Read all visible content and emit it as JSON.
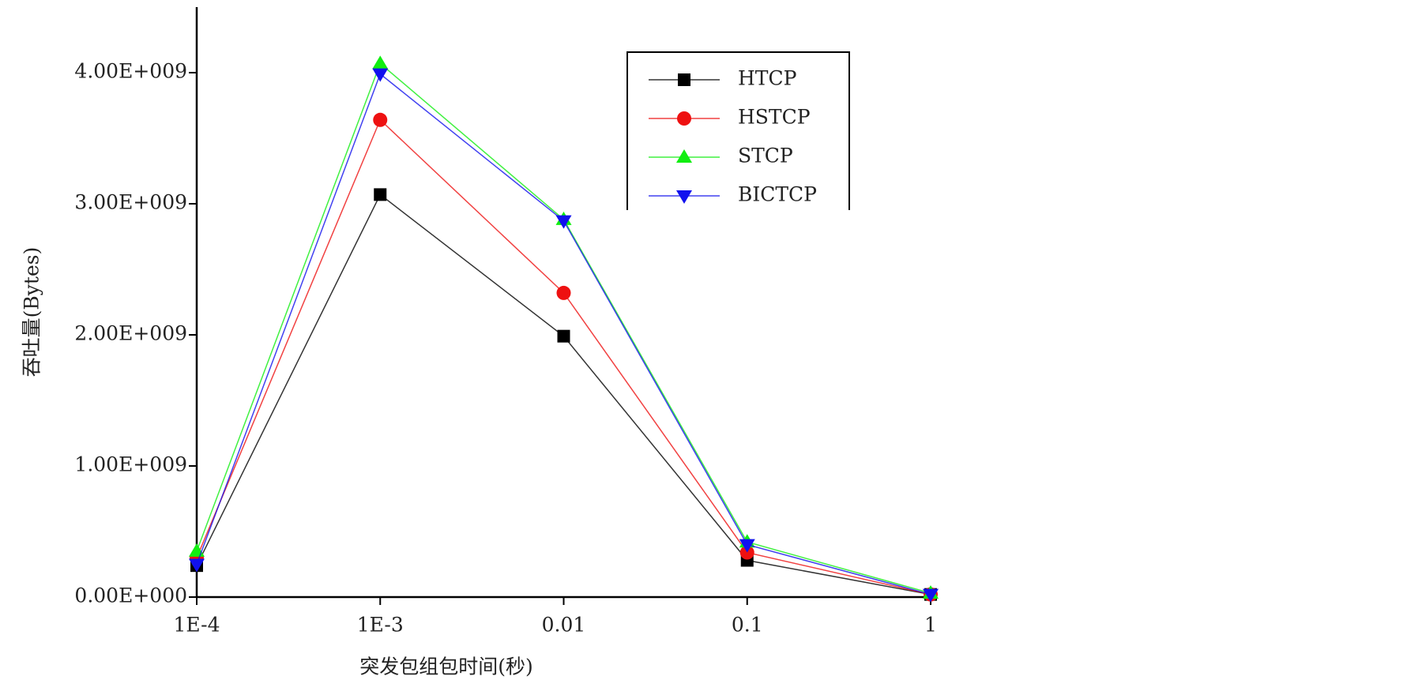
{
  "chart_data": {
    "type": "line",
    "x_label": "突发包组包时间(秒)",
    "y_label": "吞吐量(Bytes)",
    "x": [
      0.0001,
      0.001,
      0.01,
      0.1,
      1
    ],
    "xlim": [
      0.0001,
      1
    ],
    "log_x": true,
    "xticks": [
      {
        "value": 0.0001,
        "label": "1E-4"
      },
      {
        "value": 0.001,
        "label": "1E-3"
      },
      0.01,
      0.1,
      1
    ],
    "ylim": [
      0,
      4500000000
    ],
    "yticks": [
      {
        "value": 0,
        "label": "0.00E+000"
      },
      {
        "value": 1000000000,
        "label": "1.00E+009"
      },
      {
        "value": 2000000000,
        "label": "2.00E+009"
      },
      {
        "value": 3000000000,
        "label": "3.00E+009"
      },
      {
        "value": 4000000000,
        "label": "4.00E+009"
      }
    ],
    "legend": "upper right",
    "series": [
      {
        "name": "HTCP",
        "color": "#000000",
        "marker": "square",
        "values": [
          240000000,
          3070000000,
          1990000000,
          280000000,
          20000000
        ]
      },
      {
        "name": "HSTCP",
        "color": "#ee1111",
        "marker": "circle",
        "values": [
          300000000,
          3640000000,
          2320000000,
          340000000,
          20000000
        ]
      },
      {
        "name": "STCP",
        "color": "#11ee11",
        "marker": "triangle-up",
        "values": [
          350000000,
          4070000000,
          2880000000,
          420000000,
          30000000
        ]
      },
      {
        "name": "BICTCP",
        "color": "#1111ee",
        "marker": "triangle-down",
        "values": [
          250000000,
          3990000000,
          2870000000,
          400000000,
          20000000
        ]
      }
    ]
  }
}
